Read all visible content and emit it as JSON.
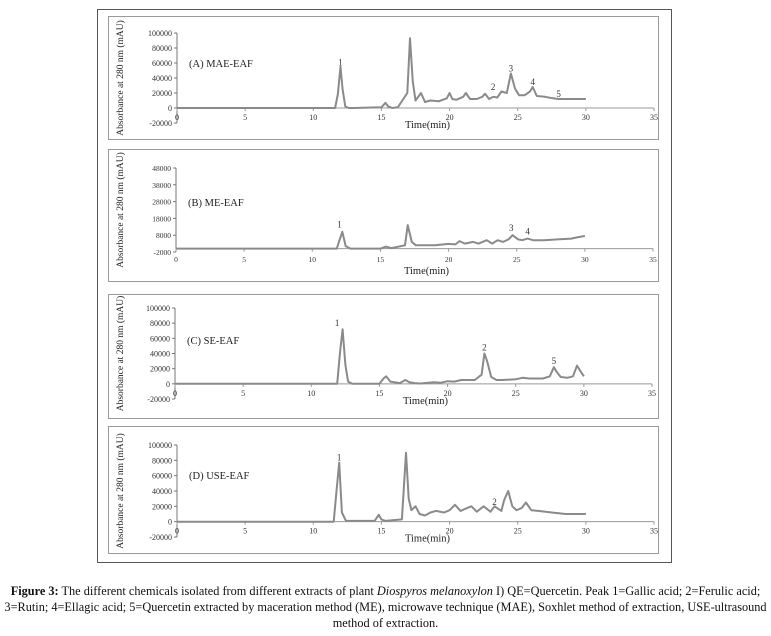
{
  "figure": {
    "caption_label": "Figure 3:",
    "caption_part1": " The different chemicals isolated from different extracts of plant ",
    "caption_italic": "Diospyros melanoxylon",
    "caption_part2": " I) QE=Quercetin. Peak 1=Gallic acid; 2=Ferulic acid; 3=Rutin; 4=Ellagic acid; 5=Quercetin extracted by maceration method (ME), microwave technique (MAE), Soxhlet method of extraction, USE-ultrasound method of extraction."
  },
  "chart_data": [
    {
      "type": "line",
      "title": "(A) MAE-EAF",
      "xlabel": "Time(min)",
      "ylabel": "Absorbance at 280 nm (mAU)",
      "xlim": [
        0,
        35
      ],
      "ylim": [
        -20000,
        100000
      ],
      "xticks": [
        0,
        5,
        10,
        15,
        20,
        25,
        30,
        35
      ],
      "yticks": [
        -20000,
        0,
        20000,
        40000,
        60000,
        80000,
        100000
      ],
      "series": [
        {
          "x": [
            0,
            11.6,
            11.8,
            12.0,
            12.15,
            12.35,
            12.6,
            13.0,
            15.0,
            15.3,
            15.5,
            15.8,
            16.2,
            16.9,
            17.1,
            17.3,
            17.5,
            17.9,
            18.2,
            18.6,
            19.2,
            19.8,
            20.0,
            20.2,
            20.5,
            21.0,
            21.2,
            21.5,
            22.0,
            22.4,
            22.6,
            22.9,
            23.2,
            23.5,
            23.8,
            24.2,
            24.5,
            24.8,
            25.1,
            25.5,
            25.9,
            26.1,
            26.4,
            27.0,
            27.6,
            28.0,
            28.5,
            29.0,
            30.0
          ],
          "y": [
            0,
            0,
            18000,
            55000,
            25000,
            2000,
            0,
            0,
            1000,
            7000,
            2000,
            0,
            1000,
            20000,
            93000,
            35000,
            10000,
            20000,
            8000,
            10000,
            9000,
            13000,
            20000,
            12000,
            11000,
            15000,
            20000,
            12000,
            12000,
            15000,
            19000,
            12000,
            15000,
            14000,
            22000,
            20000,
            46000,
            26000,
            17000,
            17000,
            22000,
            28000,
            16000,
            15000,
            13000,
            12000,
            12000,
            12000,
            12000
          ]
        }
      ],
      "peak_labels": [
        {
          "text": "1",
          "x": 12.0,
          "y": 57000
        },
        {
          "text": "2",
          "x": 23.2,
          "y": 24000
        },
        {
          "text": "3",
          "x": 24.5,
          "y": 49000
        },
        {
          "text": "4",
          "x": 26.1,
          "y": 31000
        },
        {
          "text": "5",
          "x": 28.0,
          "y": 15000
        }
      ]
    },
    {
      "type": "line",
      "title": "(B) ME-EAF",
      "xlabel": "Time(min)",
      "ylabel": "Absorbance at 280 nm (mAU)",
      "xlim": [
        0,
        35
      ],
      "ylim": [
        -2000,
        48000
      ],
      "xticks": [
        0,
        5,
        10,
        15,
        20,
        25,
        30,
        35
      ],
      "yticks": [
        -2000,
        8000,
        18000,
        28000,
        38000,
        48000
      ],
      "series": [
        {
          "x": [
            0,
            11.8,
            12.0,
            12.2,
            12.45,
            12.8,
            15.0,
            15.4,
            15.8,
            16.8,
            17.0,
            17.3,
            17.6,
            18.0,
            19.0,
            20.0,
            20.5,
            20.8,
            21.2,
            21.8,
            22.2,
            22.8,
            23.2,
            23.6,
            24.0,
            24.4,
            24.7,
            25.1,
            25.4,
            25.8,
            26.2,
            27.0,
            28.0,
            29.0,
            29.6,
            30.0
          ],
          "y": [
            0,
            0,
            5000,
            10000,
            1500,
            0,
            0,
            1200,
            300,
            2000,
            14000,
            4000,
            2000,
            2000,
            2000,
            2800,
            2500,
            4500,
            3000,
            4000,
            3000,
            5000,
            3000,
            5000,
            4000,
            5500,
            8000,
            5500,
            5000,
            6000,
            5000,
            5000,
            5500,
            6000,
            7000,
            7500
          ]
        }
      ],
      "peak_labels": [
        {
          "text": "1",
          "x": 12.0,
          "y": 12500
        },
        {
          "text": "3",
          "x": 24.6,
          "y": 10500
        },
        {
          "text": "4",
          "x": 25.8,
          "y": 8500
        }
      ]
    },
    {
      "type": "line",
      "title": "(C) SE-EAF",
      "xlabel": "Time(min)",
      "ylabel": "Absorbance at 280 nm (mAU)",
      "xlim": [
        0,
        35
      ],
      "ylim": [
        -20000,
        100000
      ],
      "xticks": [
        0,
        5,
        10,
        15,
        20,
        25,
        30,
        35
      ],
      "yticks": [
        -20000,
        0,
        20000,
        40000,
        60000,
        80000,
        100000
      ],
      "series": [
        {
          "x": [
            0,
            11.9,
            12.1,
            12.3,
            12.5,
            12.7,
            13.0,
            15.0,
            15.3,
            15.5,
            15.8,
            16.5,
            16.9,
            17.2,
            17.6,
            18.0,
            19.0,
            19.5,
            20.0,
            20.5,
            21.0,
            22.0,
            22.5,
            22.7,
            22.9,
            23.2,
            23.6,
            24.0,
            25.0,
            25.5,
            26.0,
            27.0,
            27.5,
            27.8,
            28.0,
            28.3,
            28.8,
            29.2,
            29.5,
            29.7,
            30.0
          ],
          "y": [
            0,
            0,
            40000,
            72000,
            25000,
            3000,
            0,
            0,
            7000,
            10000,
            3000,
            1000,
            5000,
            2000,
            1000,
            500,
            2000,
            1500,
            3500,
            3000,
            5000,
            5000,
            12000,
            40000,
            30000,
            9000,
            5000,
            5000,
            6000,
            8000,
            7000,
            7000,
            10000,
            22000,
            16000,
            9000,
            8000,
            10000,
            24000,
            18000,
            10000
          ]
        }
      ],
      "peak_labels": [
        {
          "text": "1",
          "x": 11.9,
          "y": 76000
        },
        {
          "text": "2",
          "x": 22.7,
          "y": 44000
        },
        {
          "text": "5",
          "x": 27.8,
          "y": 26000
        }
      ]
    },
    {
      "type": "line",
      "title": "(D) USE-EAF",
      "xlabel": "Time(min)",
      "ylabel": "Absorbance at 280 nm (mAU)",
      "xlim": [
        0,
        35
      ],
      "ylim": [
        -20000,
        100000
      ],
      "xticks": [
        0,
        5,
        10,
        15,
        20,
        25,
        30,
        35
      ],
      "yticks": [
        -20000,
        0,
        20000,
        40000,
        60000,
        80000,
        100000
      ],
      "series": [
        {
          "x": [
            0,
            11.5,
            11.7,
            11.9,
            12.1,
            12.4,
            14.5,
            14.8,
            15.0,
            15.3,
            16.5,
            16.8,
            17.0,
            17.2,
            17.5,
            17.8,
            18.2,
            18.6,
            19.0,
            19.6,
            20.0,
            20.4,
            20.8,
            21.3,
            21.6,
            22.0,
            22.5,
            23.0,
            23.3,
            23.8,
            24.0,
            24.3,
            24.6,
            24.9,
            25.3,
            25.6,
            26.0,
            26.5,
            27.5,
            28.5,
            30.0
          ],
          "y": [
            0,
            0,
            40000,
            77000,
            12000,
            1000,
            1000,
            9000,
            3000,
            1000,
            3000,
            90000,
            30000,
            15000,
            20000,
            10000,
            8000,
            12000,
            14000,
            12000,
            15000,
            22000,
            14000,
            18000,
            20000,
            13000,
            20000,
            13000,
            20000,
            14000,
            28000,
            40000,
            20000,
            15000,
            18000,
            25000,
            15000,
            14000,
            12000,
            10000,
            10000
          ]
        }
      ],
      "peak_labels": [
        {
          "text": "1",
          "x": 11.9,
          "y": 80000
        },
        {
          "text": "2",
          "x": 23.3,
          "y": 22000
        }
      ]
    }
  ]
}
